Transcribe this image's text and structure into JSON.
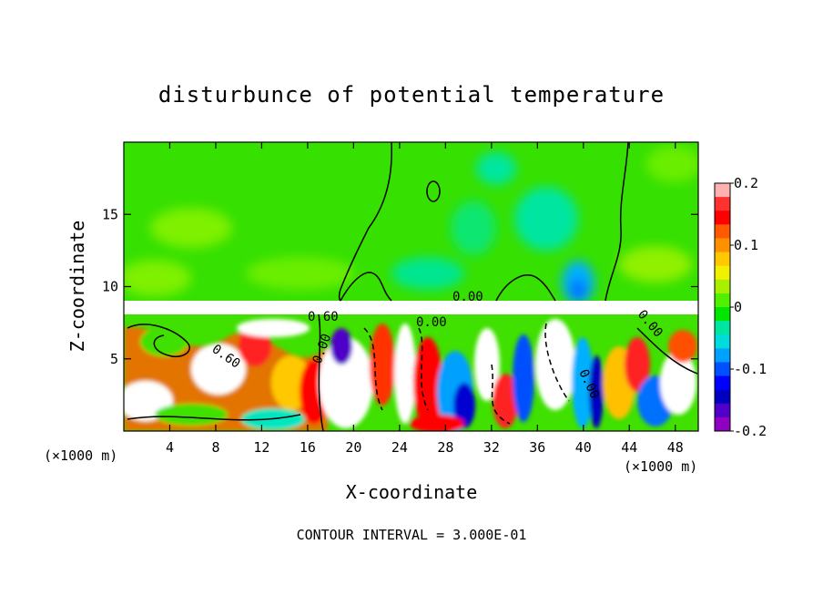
{
  "chart_data": {
    "type": "heatmap",
    "title": "disturbunce of potential temperature",
    "xlabel": "X-coordinate",
    "ylabel": "Z-coordinate",
    "x_unit": "(×1000 m)",
    "z_unit": "(×1000 m)",
    "xlim": [
      0,
      50
    ],
    "ylim": [
      0,
      20
    ],
    "xticks": [
      4,
      8,
      12,
      16,
      20,
      24,
      28,
      32,
      36,
      40,
      44,
      48
    ],
    "yticks": [
      5,
      10,
      15
    ],
    "colorbar": {
      "range": [
        -0.2,
        0.2
      ],
      "tick_labels": [
        "0.2",
        "0.1",
        "0",
        "-0.1",
        "-0.2"
      ],
      "colors": [
        "#ffb0b0",
        "#ff3030",
        "#ff0000",
        "#ff5a00",
        "#ff9000",
        "#ffc800",
        "#f0f000",
        "#a8f000",
        "#50f000",
        "#00e600",
        "#00e6a0",
        "#00dcdc",
        "#00a0ff",
        "#0050ff",
        "#0000ff",
        "#0000c0",
        "#5000c8",
        "#9000c0"
      ]
    },
    "contour_labels": [
      "0.60",
      "0.00",
      "0.00",
      "0.00",
      "0.60",
      "0.00",
      "0.00"
    ],
    "contour_interval_text": "CONTOUR INTERVAL = 3.000E-01"
  }
}
